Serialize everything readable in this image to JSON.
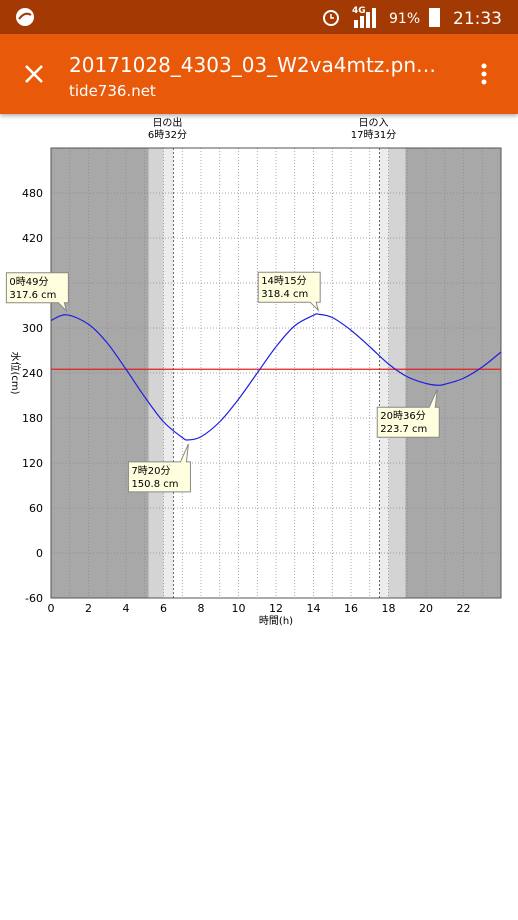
{
  "status_bar": {
    "network": "4G",
    "battery": "91%",
    "time": "21:33"
  },
  "app_bar": {
    "title": "20171028_4303_03_W2va4mtz.pn…",
    "subtitle": "tide736.net"
  },
  "chart_data": {
    "type": "line",
    "x_label": "時間(h)",
    "y_label": "水位(cm)",
    "xlim": [
      0,
      24
    ],
    "ylim": [
      -60,
      540
    ],
    "xticks": [
      0,
      2,
      4,
      6,
      8,
      10,
      12,
      14,
      16,
      18,
      20,
      22
    ],
    "minor_xticks": [
      1,
      3,
      5,
      7,
      9,
      11,
      13,
      15,
      17,
      19,
      21,
      23
    ],
    "yticks": [
      -60,
      0,
      60,
      120,
      180,
      240,
      300,
      360,
      420,
      480
    ],
    "grid": true,
    "bands": [
      {
        "from": 0,
        "to": 5.2,
        "color": "#a8a8a8"
      },
      {
        "from": 5.2,
        "to": 6,
        "color": "#d4d4d4"
      },
      {
        "from": 6,
        "to": 6.53,
        "color": "#ececec"
      },
      {
        "from": 17.52,
        "to": 18,
        "color": "#ececec"
      },
      {
        "from": 18,
        "to": 18.9,
        "color": "#d4d4d4"
      },
      {
        "from": 18.9,
        "to": 24,
        "color": "#a8a8a8"
      }
    ],
    "sun": [
      {
        "label": "日の出",
        "time": "6時32分",
        "x": 6.53
      },
      {
        "label": "日の入",
        "time": "17時31分",
        "x": 17.52
      }
    ],
    "reference_line": {
      "value": 245,
      "color": "#e02020"
    },
    "series": [
      {
        "color": "#2020e0",
        "x": [
          0,
          0.82,
          2,
          3,
          4,
          5,
          6,
          7,
          7.33,
          8,
          9,
          10,
          11,
          12,
          13,
          14,
          14.25,
          15,
          16,
          17,
          18,
          19,
          20,
          20.6,
          21,
          22,
          23,
          24
        ],
        "values": [
          310,
          317.6,
          305,
          280,
          245,
          208,
          175,
          154,
          150.8,
          155,
          175,
          205,
          240,
          275,
          303,
          317,
          318.4,
          314,
          297,
          275,
          252,
          235,
          226,
          223.7,
          225,
          233,
          248,
          268
        ]
      }
    ],
    "annotations": [
      {
        "time": "0時49分",
        "value_label": "317.6 cm",
        "x": 0.82,
        "y": 317.6,
        "pos": "above-left"
      },
      {
        "time": "7時20分",
        "value_label": "150.8 cm",
        "x": 7.33,
        "y": 150.8,
        "pos": "below-left"
      },
      {
        "time": "14時15分",
        "value_label": "318.4 cm",
        "x": 14.25,
        "y": 318.4,
        "pos": "above-left"
      },
      {
        "time": "20時36分",
        "value_label": "223.7 cm",
        "x": 20.6,
        "y": 223.7,
        "pos": "below-left"
      }
    ]
  }
}
